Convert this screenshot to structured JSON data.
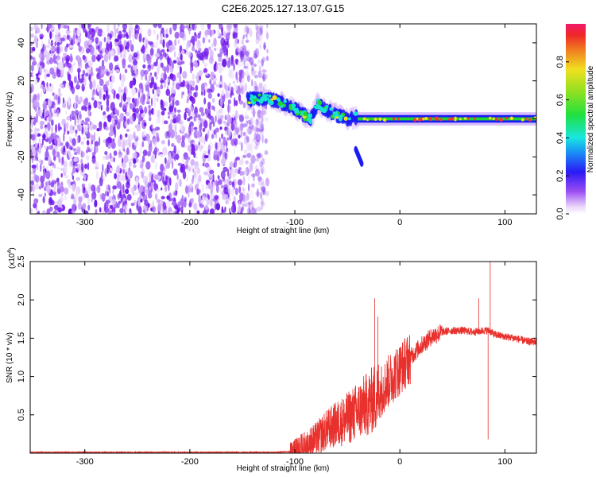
{
  "title": "C2E6.2025.127.13.07.G15",
  "colors": {
    "line": "#e8302c",
    "axis": "#000000",
    "purple": "#7a1ef0",
    "blue": "#1b1bf5",
    "cyan": "#19e3d0",
    "green": "#22d62b",
    "red": "#f03a3a"
  },
  "chart_data": [
    {
      "type": "heatmap",
      "xlabel": "Height of straight line (km)",
      "ylabel": "Frequency (Hz)",
      "xlim": [
        -352,
        130
      ],
      "ylim": [
        -50,
        50
      ],
      "xticks": [
        -300,
        -200,
        -100,
        0,
        100
      ],
      "xtick_labels": [
        "-300",
        "-200",
        "-100",
        "0",
        "100"
      ],
      "yticks": [
        -40,
        -20,
        0,
        20,
        40
      ],
      "ytick_labels": [
        "-40",
        "-20",
        "0",
        "20",
        "40"
      ],
      "features": {
        "noise_region_x": [
          -352,
          -132
        ],
        "descending_track": [
          [
            -145,
            10
          ],
          [
            -130,
            11
          ],
          [
            -115,
            9
          ],
          [
            -100,
            5
          ],
          [
            -85,
            0
          ],
          [
            -78,
            8
          ],
          [
            -70,
            5
          ],
          [
            -60,
            2
          ],
          [
            -50,
            0
          ],
          [
            -40,
            1
          ]
        ],
        "branch": [
          [
            -42,
            -16
          ],
          [
            -36,
            -24
          ]
        ],
        "flat_line_y": 0,
        "flat_line_x": [
          -40,
          130
        ]
      },
      "colorbar": {
        "label": "Normalized spectral amplitude",
        "range": [
          0.0,
          1.0
        ],
        "ticks": [
          0.0,
          0.2,
          0.4,
          0.6,
          0.8
        ],
        "tick_labels": [
          "0.0",
          "0.2",
          "0.4",
          "0.6",
          "0.8"
        ]
      }
    },
    {
      "type": "line",
      "xlabel": "Height of straight line (km)",
      "ylabel": "SNR (10 * v/v)",
      "scale_label": "(x10",
      "scale_exp": "4",
      "scale_close": ")",
      "xlim": [
        -352,
        130
      ],
      "ylim": [
        0,
        2.5
      ],
      "xticks": [
        -300,
        -200,
        -100,
        0,
        100
      ],
      "xtick_labels": [
        "-300",
        "-200",
        "-100",
        "0",
        "100"
      ],
      "yticks": [
        0.5,
        1.0,
        1.5,
        2.0,
        2.5
      ],
      "ytick_labels": [
        "0.5",
        "1.0",
        "1.5",
        "2.0",
        "2.5"
      ],
      "series": [
        {
          "x": [
            -352,
            -300,
            -250,
            -200,
            -150,
            -120,
            -105,
            -100,
            -90,
            -80,
            -70,
            -60,
            -50,
            -40,
            -30,
            -25,
            -20,
            -10,
            0,
            10,
            20,
            30,
            40,
            50,
            60,
            70,
            80,
            85,
            90,
            100,
            110,
            120,
            130
          ],
          "y": [
            0.01,
            0.01,
            0.01,
            0.01,
            0.01,
            0.01,
            0.02,
            0.05,
            0.12,
            0.18,
            0.3,
            0.38,
            0.45,
            0.55,
            0.65,
            0.7,
            0.78,
            0.95,
            1.1,
            1.25,
            1.4,
            1.52,
            1.58,
            1.6,
            1.6,
            1.58,
            1.6,
            1.6,
            1.55,
            1.52,
            1.5,
            1.46,
            1.45
          ]
        }
      ],
      "spikes": [
        {
          "x": -24,
          "y": 2.02
        },
        {
          "x": -21,
          "y": 1.78
        },
        {
          "x": 75,
          "y": 2.02
        },
        {
          "x": 86,
          "y": 2.55
        },
        {
          "x": 84,
          "y": 0.18
        }
      ]
    }
  ]
}
